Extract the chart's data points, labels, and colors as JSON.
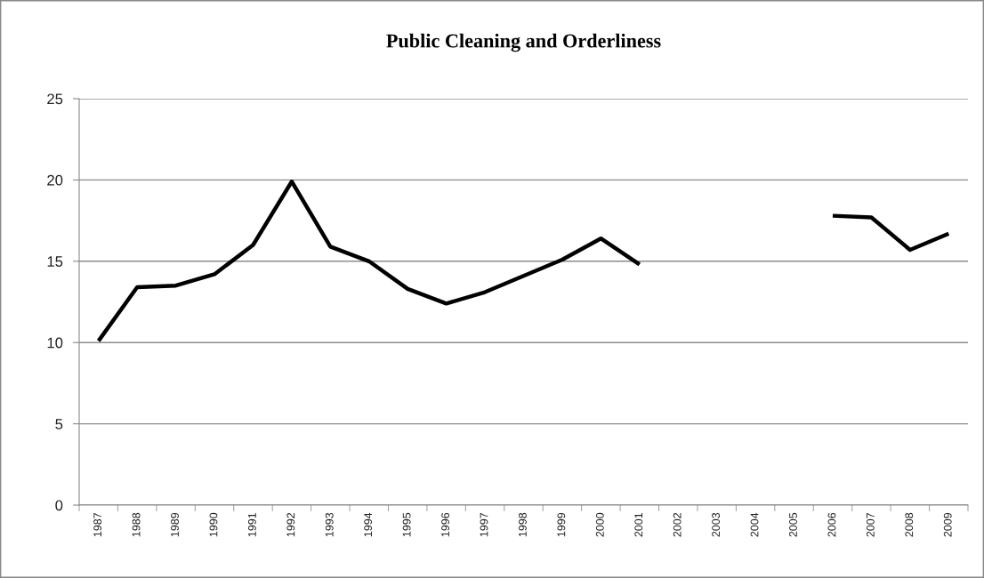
{
  "chart_data": {
    "type": "line",
    "title": "Public Cleaning and Orderliness",
    "categories": [
      "1987",
      "1988",
      "1989",
      "1990",
      "1991",
      "1992",
      "1993",
      "1994",
      "1995",
      "1996",
      "1997",
      "1998",
      "1999",
      "2000",
      "2001",
      "2002",
      "2003",
      "2004",
      "2005",
      "2006",
      "2007",
      "2008",
      "2009"
    ],
    "series": [
      {
        "color": "#000000",
        "values": [
          10.1,
          13.4,
          13.5,
          14.2,
          16.0,
          19.9,
          15.9,
          15.0,
          13.3,
          12.4,
          13.1,
          14.1,
          15.1,
          16.4,
          14.8,
          null,
          null,
          null,
          null,
          17.8,
          17.7,
          15.7,
          16.7
        ]
      }
    ],
    "ylim": [
      0,
      25
    ],
    "yticks": [
      0,
      5,
      10,
      15,
      20,
      25
    ],
    "grid": "y",
    "line_style": "solid"
  }
}
